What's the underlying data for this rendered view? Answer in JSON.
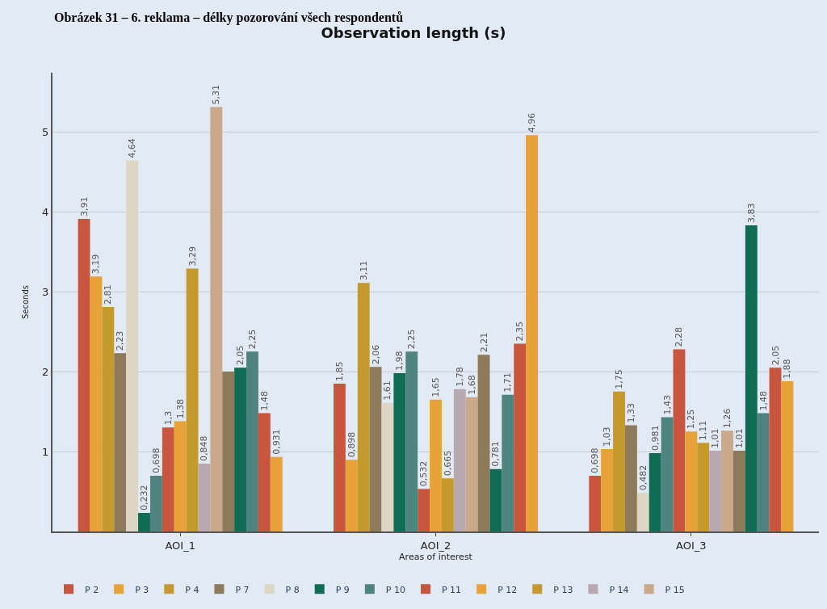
{
  "chart_data": {
    "type": "bar",
    "title": "Observation length (s)",
    "annotations": [
      "Obrázek 31 – 6. reklama – délky pozorování všech respondentů"
    ],
    "xlabel": "Areas of interest",
    "ylabel": "Seconds",
    "categories": [
      "AOI_1",
      "AOI_2",
      "AOI_3"
    ],
    "ylim": [
      0,
      5.74
    ],
    "yticks": [
      1,
      2,
      3,
      4,
      5
    ],
    "grid": "y",
    "legend": "bottom",
    "series": [
      {
        "name": "P 2",
        "color": "#c8553d",
        "values": [
          3.91,
          1.85,
          0.698
        ],
        "value_labels": [
          "3,91",
          "1,85",
          "0,698"
        ]
      },
      {
        "name": "P 3",
        "color": "#e8a23a",
        "values": [
          3.19,
          0.898,
          1.03
        ],
        "value_labels": [
          "3,19",
          "0,898",
          "1,03"
        ]
      },
      {
        "name": "P 4",
        "color": "#c49a2c",
        "values": [
          2.81,
          3.11,
          1.75
        ],
        "value_labels": [
          "2,81",
          "3,11",
          "1,75"
        ]
      },
      {
        "name": "P 7",
        "color": "#8c7a5a",
        "values": [
          2.23,
          2.06,
          1.33
        ],
        "value_labels": [
          "2,23",
          "2,06",
          "1,33"
        ]
      },
      {
        "name": "P 8",
        "color": "#ddd6c4",
        "values": [
          4.64,
          1.61,
          0.482
        ],
        "value_labels": [
          "4,64",
          "1,61",
          "0,482"
        ]
      },
      {
        "name": "P 9",
        "color": "#0f6b52",
        "values": [
          0.232,
          1.98,
          0.981
        ],
        "value_labels": [
          "0,232",
          "1,98",
          "0,981"
        ]
      },
      {
        "name": "P 10",
        "color": "#4e8380",
        "values": [
          0.698,
          2.25,
          1.43
        ],
        "value_labels": [
          "0,698",
          "2,25",
          "1,43"
        ]
      },
      {
        "name": "P 11",
        "color": "#c8553d",
        "values": [
          1.3,
          0.532,
          2.28
        ],
        "value_labels": [
          "1,3",
          "0,532",
          "2,28"
        ]
      },
      {
        "name": "P 12",
        "color": "#e8a23a",
        "values": [
          1.38,
          1.65,
          1.25
        ],
        "value_labels": [
          "1,38",
          "1,65",
          "1,25"
        ]
      },
      {
        "name": "P 13",
        "color": "#c49a2c",
        "values": [
          3.29,
          0.665,
          1.11
        ],
        "value_labels": [
          "3,29",
          "0,665",
          "1,11"
        ]
      },
      {
        "name": "P 14",
        "color": "#b8a8b0",
        "values": [
          0.848,
          1.78,
          1.01
        ],
        "value_labels": [
          "0,848",
          "1,78",
          "1,01"
        ]
      },
      {
        "name": "P 15",
        "color": "#c9a98a",
        "values": [
          5.31,
          1.68,
          1.26
        ],
        "value_labels": [
          "5,31",
          "1,68",
          "1,26"
        ]
      },
      {
        "color": "#8c7a5a",
        "values": [
          2.0,
          2.21,
          1.01
        ],
        "value_labels": [
          null,
          "2,21",
          "1,01"
        ]
      },
      {
        "color": "#0f6b52",
        "values": [
          2.05,
          0.781,
          3.83
        ],
        "value_labels": [
          "2,05",
          "0,781",
          "3,83"
        ]
      },
      {
        "color": "#4e8380",
        "values": [
          2.25,
          1.71,
          1.48
        ],
        "value_labels": [
          "2,25",
          "1,71",
          "1,48"
        ]
      },
      {
        "color": "#c8553d",
        "values": [
          1.48,
          2.35,
          2.05
        ],
        "value_labels": [
          "1,48",
          "2,35",
          "2,05"
        ]
      },
      {
        "color": "#e8a23a",
        "values": [
          0.931,
          4.96,
          1.88
        ],
        "value_labels": [
          "0,931",
          "4,96",
          "1,88"
        ]
      }
    ]
  }
}
